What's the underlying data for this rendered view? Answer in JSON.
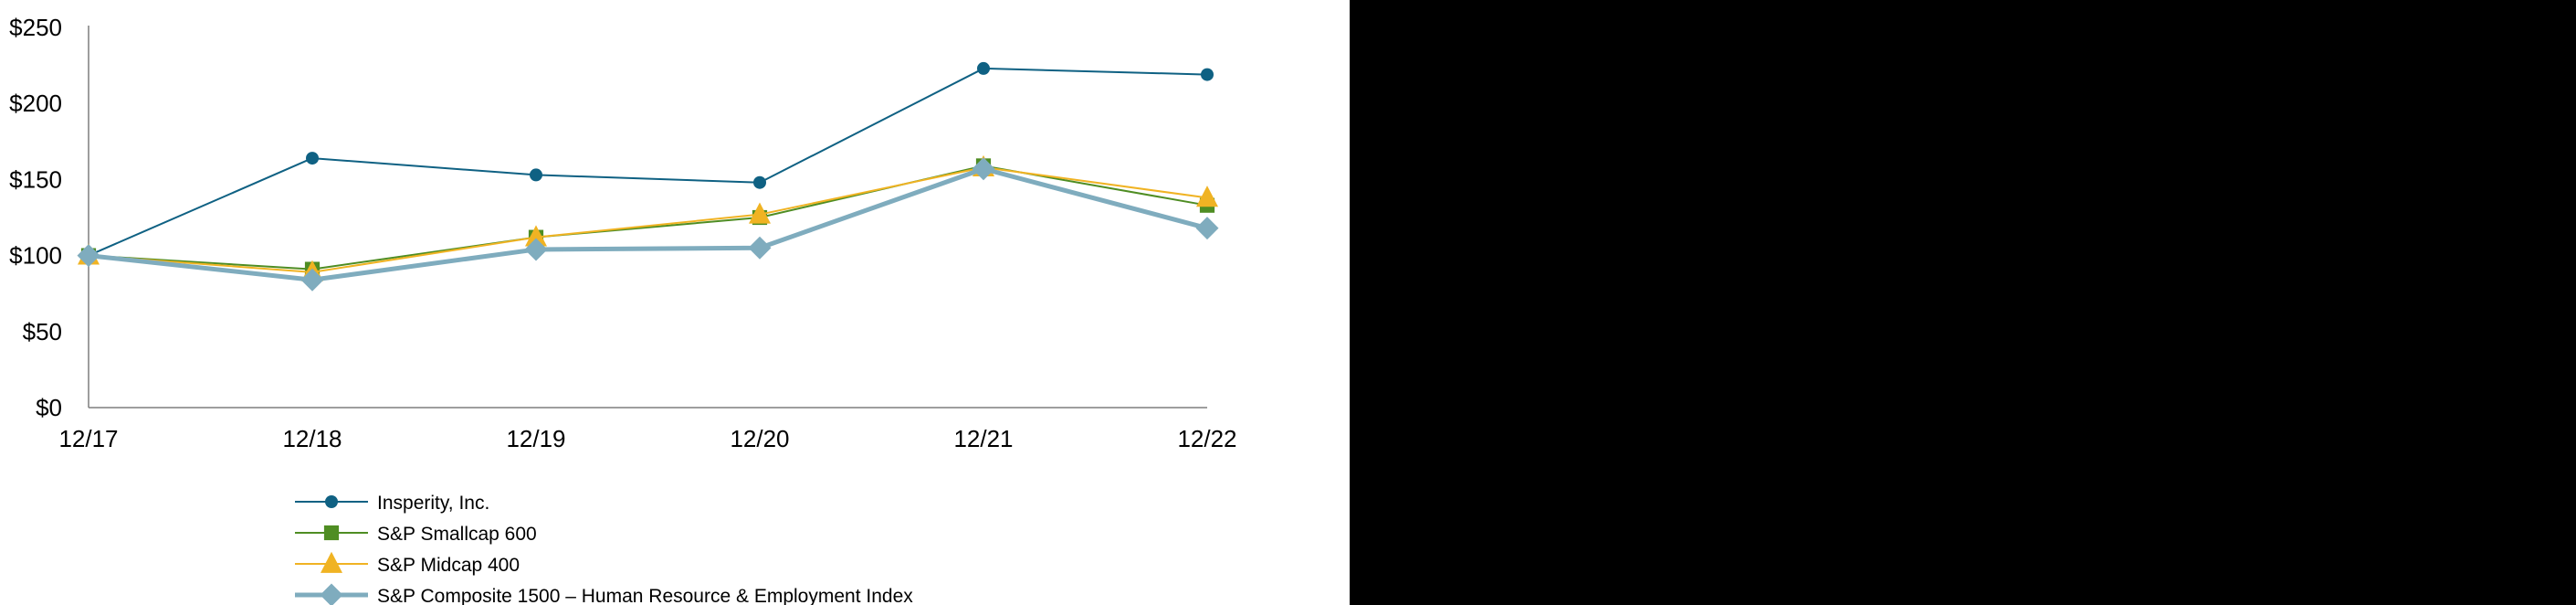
{
  "colors": {
    "background": "#ffffff",
    "axis": "#7f7f7f",
    "text": "#000000",
    "right_panel": "#000000"
  },
  "chart_data": {
    "type": "line",
    "title": "",
    "xlabel": "",
    "ylabel": "",
    "categories": [
      "12/17",
      "12/18",
      "12/19",
      "12/20",
      "12/21",
      "12/22"
    ],
    "y_ticks": [
      "$0",
      "$50",
      "$100",
      "$150",
      "$200",
      "$250"
    ],
    "ylim": [
      0,
      250
    ],
    "grid": false,
    "legend_position": "bottom",
    "series": [
      {
        "name": "Insperity, Inc.",
        "values": [
          100,
          164,
          153,
          148,
          223,
          219
        ],
        "color": "#0f6183",
        "marker": "circle",
        "line_width": 2
      },
      {
        "name": "S&P Smallcap 600",
        "values": [
          100,
          91,
          112,
          125,
          159,
          133
        ],
        "color": "#4f8d23",
        "marker": "square",
        "line_width": 2
      },
      {
        "name": "S&P Midcap 400",
        "values": [
          100,
          89,
          112,
          127,
          158,
          138
        ],
        "color": "#f0b323",
        "marker": "triangle",
        "line_width": 2
      },
      {
        "name": "S&P Composite 1500 – Human Resource & Employment Index",
        "values": [
          100,
          84,
          104,
          105,
          157,
          118
        ],
        "color": "#7facbe",
        "marker": "diamond",
        "line_width": 5
      }
    ]
  }
}
